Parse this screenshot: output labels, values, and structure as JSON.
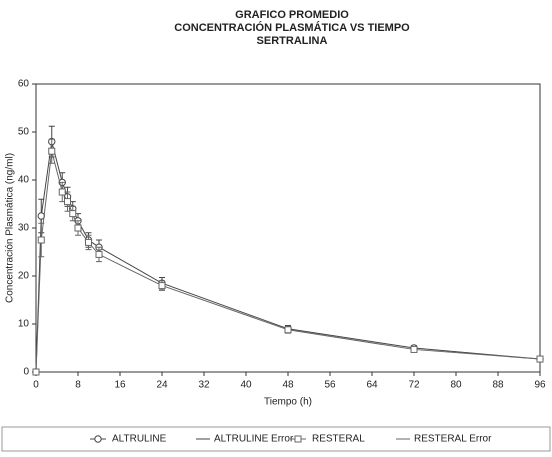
{
  "chart_data": {
    "type": "line",
    "title": [
      "GRAFICO PROMEDIO",
      "CONCENTRACIÓN PLASMÁTICA VS TIEMPO",
      "SERTRALINA"
    ],
    "x_label": "Tiempo (h)",
    "y_label": "Concentración Plasmática (ng/ml)",
    "x": [
      0,
      1,
      3,
      5,
      6,
      7,
      8,
      10,
      12,
      24,
      48,
      72,
      96
    ],
    "series": [
      {
        "name": "ALTRULINE",
        "error_name": "ALTRULINE Error",
        "color": "#444444",
        "marker": "circle",
        "values": [
          0,
          32.5,
          48,
          39.5,
          36.5,
          34,
          31.5,
          27.5,
          26,
          18.5,
          9,
          5,
          2.7
        ],
        "errors": [
          0,
          3.5,
          3.2,
          2,
          2,
          1.5,
          1.5,
          1.5,
          1.5,
          1.2,
          0.7,
          0.5,
          0.3
        ]
      },
      {
        "name": "RESTERAL",
        "error_name": "RESTERAL Error",
        "color": "#666666",
        "marker": "square",
        "values": [
          0,
          27.5,
          46,
          37.5,
          35.5,
          33,
          30,
          27,
          24.5,
          18,
          8.8,
          4.7,
          2.7
        ],
        "errors": [
          0,
          3.5,
          2.5,
          2,
          2,
          1.5,
          1.5,
          1.5,
          1.5,
          1,
          0.7,
          0.5,
          0.3
        ]
      }
    ],
    "xlim": [
      0,
      96
    ],
    "xticks": [
      0,
      8,
      16,
      24,
      32,
      40,
      48,
      56,
      64,
      72,
      80,
      88,
      96
    ],
    "ylim": [
      0,
      60
    ],
    "yticks": [
      0,
      10,
      20,
      30,
      40,
      50,
      60
    ],
    "legend": "bottom"
  }
}
